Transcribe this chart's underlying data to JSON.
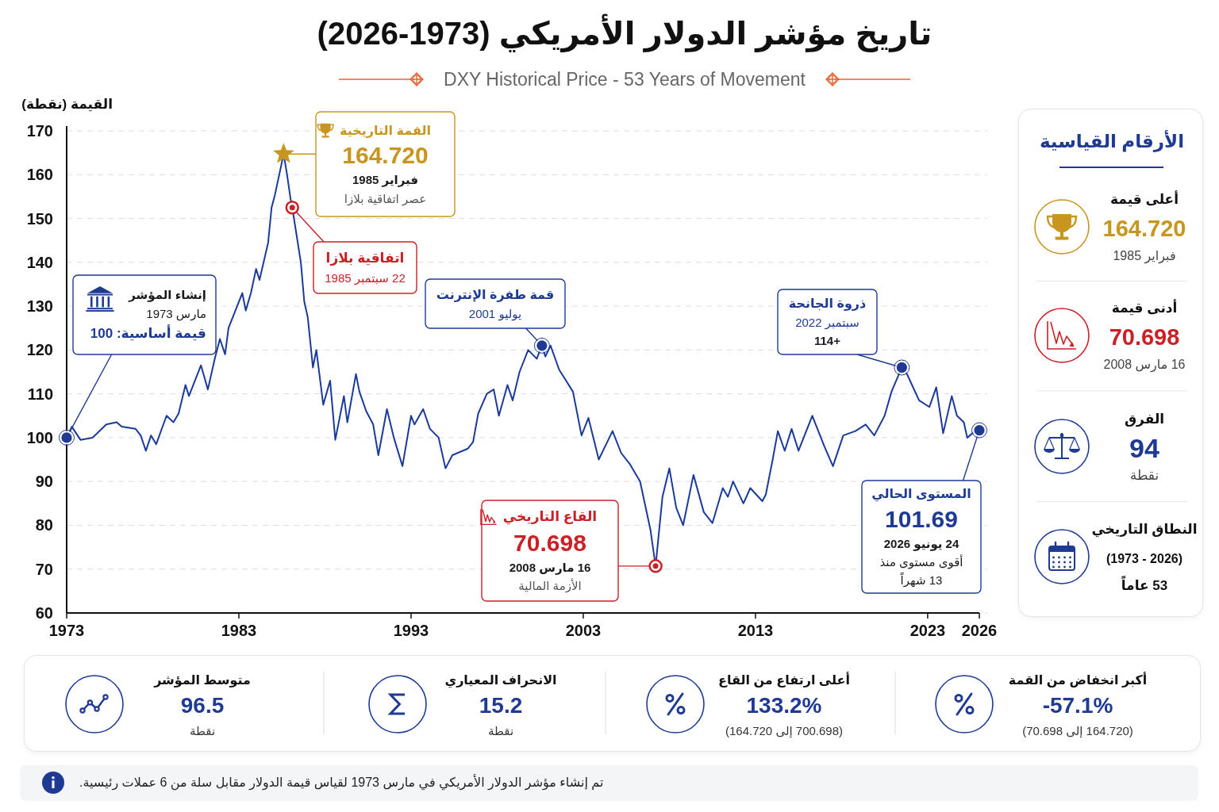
{
  "chart_data": [
    {
      "type": "line",
      "title": "تاريخ مؤشر الدولار الأمريكي (1973-2026)",
      "subtitle": "DXY Historical Price - 53 Years of Movement",
      "ylabel": "القيمة (نقطة)",
      "x": [
        1973,
        1973.3,
        1973.8,
        1974.5,
        1975.3,
        1975.9,
        1976.2,
        1977,
        1977.3,
        1977.6,
        1977.9,
        1978.2,
        1978.8,
        1979.2,
        1979.5,
        1979.9,
        1980.1,
        1980.8,
        1981.2,
        1981.6,
        1981.9,
        1982.2,
        1982.4,
        1982.9,
        1983.2,
        1983.4,
        1983.7,
        1984,
        1984.2,
        1984.7,
        1984.9,
        1985.1,
        1985.6,
        1985.8,
        1986,
        1986.1,
        1986.6,
        1986.8,
        1987,
        1987.3,
        1987.5,
        1987.9,
        1988.3,
        1988.6,
        1989.1,
        1989.3,
        1989.8,
        1990,
        1990.4,
        1990.8,
        1991.1,
        1991.6,
        1992,
        1992.5,
        1993,
        1993.2,
        1993.7,
        1994.1,
        1994.6,
        1995,
        1995.4,
        1996.3,
        1996.6,
        1996.9,
        1997.4,
        1997.8,
        1998.1,
        1998.6,
        1998.9,
        1999.3,
        1999.8,
        2000.3,
        2000.6,
        2000.8,
        2001.1,
        2001.6,
        2002,
        2002.4,
        2002.9,
        2003.3,
        2003.9,
        2004.7,
        2005.2,
        2005.7,
        2006.3,
        2006.9,
        2007.2,
        2007.6,
        2008,
        2008.4,
        2008.8,
        2009.4,
        2010,
        2010.5,
        2011.1,
        2011.4,
        2011.7,
        2012.3,
        2012.7,
        2013.4,
        2013.6,
        2014,
        2014.3,
        2014.7,
        2015.1,
        2015.5,
        2016.3,
        2016.6,
        2017,
        2017.5,
        2018.1,
        2018.8,
        2019.4,
        2019.9,
        2020.5,
        2020.9,
        2021.5,
        2021.8,
        2022.5,
        2023.1,
        2023.5,
        2023.9,
        2024.4,
        2024.7,
        2025.1,
        2025.3,
        2025.6,
        2026
      ],
      "series": [
        {
          "color": "#1b3a9a",
          "values": [
            100,
            102.5,
            99.5,
            100,
            103,
            103.5,
            102.5,
            102,
            100.5,
            97,
            100.5,
            98.5,
            105,
            103.5,
            105.5,
            112,
            109.5,
            116.5,
            111,
            118,
            122.5,
            119,
            125,
            130,
            133,
            129,
            133,
            138.5,
            136,
            144.5,
            152.5,
            155.5,
            164.72,
            160,
            154.5,
            152.5,
            140,
            131,
            127.5,
            116,
            120,
            107.5,
            113,
            99.5,
            109.5,
            103.5,
            114.5,
            110.5,
            106,
            103,
            96,
            106.5,
            100,
            93.5,
            105,
            103,
            106.5,
            102,
            100,
            93,
            96,
            97.5,
            99,
            105.5,
            110,
            111,
            105,
            112,
            108.5,
            115,
            120,
            118,
            121,
            118.5,
            121,
            115.5,
            113,
            110.5,
            100.5,
            104.5,
            95,
            101.5,
            96.5,
            94,
            90,
            79,
            70.698,
            86.5,
            93,
            84,
            80,
            91.5,
            83,
            80.5,
            88.5,
            86.5,
            90,
            85,
            88.5,
            85.5,
            87,
            95,
            101.5,
            97,
            102,
            97,
            105,
            102,
            98,
            93.5,
            100.5,
            101.5,
            103,
            100.5,
            105,
            110.5,
            116,
            114.5,
            108.5,
            107,
            111.5,
            101,
            109.5,
            105,
            103.5,
            100,
            101,
            101.69
          ]
        }
      ],
      "xlim": [
        1973,
        2026
      ],
      "xticks": [
        1973,
        1983,
        1993,
        2003,
        2013,
        2023,
        2026
      ],
      "ylim": [
        60,
        170
      ],
      "yticks": [
        60,
        70,
        80,
        90,
        100,
        110,
        120,
        130,
        140,
        150,
        160,
        170
      ],
      "grid": "y",
      "annotations": [
        {
          "text": "إنشاء المؤشر\nمارس 1973\nقيمة أساسية: 100",
          "x": 1973,
          "y": 100
        },
        {
          "text": "القمة التاريخية\n164.720\nفبراير 1985\nعصر اتفاقية بلازا",
          "x": 1985.6,
          "y": 164.72
        },
        {
          "text": "اتفاقية بلازا\n22 سبتمبر 1985",
          "x": 1986.1,
          "y": 152.5
        },
        {
          "text": "قمة طفرة الإنترنت\nيوليو 2001",
          "x": 2000.6,
          "y": 121
        },
        {
          "text": "القاع التاريخي\n70.698\n16 مارس 2008\nالأزمة المالية",
          "x": 2007.2,
          "y": 70.698
        },
        {
          "text": "ذروة الجانحة\nسبتمبر 2022\n114+",
          "x": 2021.5,
          "y": 116
        },
        {
          "text": "المستوى الحالي\n101.69\n24 يونيو 2026\nأقوى مستوى منذ\n13 شهراً",
          "x": 2026,
          "y": 101.69
        }
      ]
    },
    {
      "type": "other",
      "title": "الأرقام القياسية",
      "annotations": [
        "أعلى قيمة\n164.720\nفبراير 1985",
        "أدنى قيمة\n70.698\n16 مارس 2008",
        "الفرق\n94\nنقطة",
        "النطاق التاريخي\n(1973 - 2026)\n53 عاماً"
      ]
    },
    {
      "type": "other",
      "annotations": [
        "أكبر انخفاض من القمة\n-57.1%\n(164.720 إلى 70.698)",
        "أعلى ارتفاع من القاع\n133.2%\n(700.698 إلى 164.720)",
        "الانحراف المعياري\n15.2\nنقطة",
        "متوسط المؤشر\n96.5\nنقطة"
      ]
    },
    {
      "type": "other",
      "annotations": [
        "تم إنشاء مؤشر الدولار الأمريكي في مارس 1973 لقياس قيمة الدولار مقابل سلة من 6 عملات رئيسية."
      ]
    }
  ]
}
